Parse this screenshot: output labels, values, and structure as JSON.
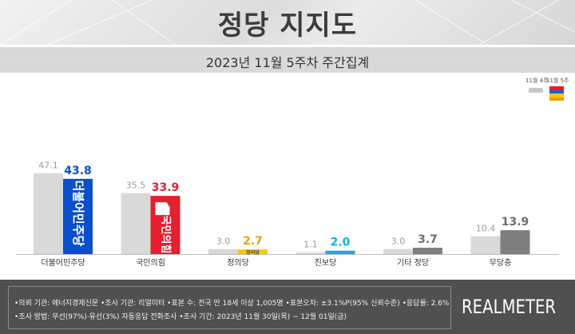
{
  "title": "정당 지지도",
  "subtitle": "2023년 11월 5주차 주간집계",
  "legend": {
    "previous_label": "11월 4주",
    "current_label": "11월 5주",
    "previous_color": "#c8c8c8",
    "current_colors": [
      "#e61e2b",
      "#1a5fd0",
      "#ffcc00",
      "#f59a00"
    ]
  },
  "chart_data": {
    "type": "bar",
    "categories": [
      "더불어민주당",
      "국민의힘",
      "정의당",
      "진보당",
      "기타 정당",
      "무당층"
    ],
    "series": [
      {
        "name": "11월 4주",
        "values": [
          47.1,
          35.5,
          3.0,
          1.1,
          3.0,
          10.4
        ]
      },
      {
        "name": "11월 5주",
        "values": [
          43.8,
          33.9,
          2.7,
          2.0,
          3.7,
          13.9
        ]
      }
    ],
    "current_bar_colors": [
      "#0a4fc9",
      "#e3202f",
      "#f7c900",
      "#1fa7e0",
      "#7f7f7f",
      "#7f7f7f"
    ],
    "current_label_colors": [
      "#0a4fc9",
      "#e3202f",
      "#e0a800",
      "#1fa7e0",
      "#6f6f6f",
      "#6f6f6f"
    ],
    "previous_bar_color": "#d9d9d9",
    "previous_label_color": "#9a9a9a",
    "bar_party_logos": [
      "더불어민주당",
      "국민의힘",
      "정의당",
      "",
      "",
      ""
    ],
    "ylim": [
      0,
      50
    ],
    "grid": false
  },
  "footer": {
    "line1": "•의뢰 기관: 에너지경제신문  •조사 기관: 리얼미터 •표본 수: 전국 만 18세 이상 1,005명 •표본오차: ±3.1%P(95% 신뢰수준) •응답률: 2.6%",
    "line2": "•조사 방법: 무선(97%)·유선(3%) 자동응답 전화조사 •조사 기간: 2023년 11월 30일(목) ~ 12월 01일(금)",
    "logo": "REALMETER"
  }
}
